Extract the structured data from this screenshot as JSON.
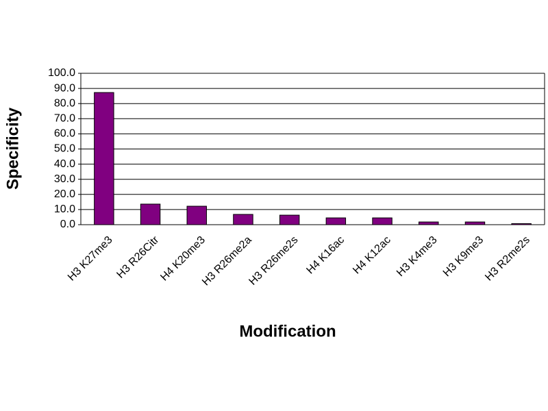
{
  "chart_data": {
    "type": "bar",
    "x_label": "Modification",
    "y_label": "Specificity",
    "categories": [
      "H3 K27me3",
      "H3 R26Citr",
      "H4 K20me3",
      "H3 R26me2a",
      "H3 R26me2s",
      "H4 K16ac",
      "H4 K12ac",
      "H3 K4me3",
      "H3 K9me3",
      "H3 R2me2s"
    ],
    "values": [
      87.3,
      13.6,
      12.2,
      6.8,
      6.3,
      4.5,
      4.5,
      1.8,
      1.8,
      0.7
    ],
    "color": "#800080",
    "ylim": [
      0,
      100
    ],
    "yticks": [
      {
        "value": 0,
        "label": "0.0"
      },
      {
        "value": 10,
        "label": "10.0"
      },
      {
        "value": 20,
        "label": "20.0"
      },
      {
        "value": 30,
        "label": "30.0"
      },
      {
        "value": 40,
        "label": "40.0"
      },
      {
        "value": 50,
        "label": "50.0"
      },
      {
        "value": 60,
        "label": "60.0"
      },
      {
        "value": 70,
        "label": "70.0"
      },
      {
        "value": 80,
        "label": "80.0"
      },
      {
        "value": 90,
        "label": "90.0"
      },
      {
        "value": 100,
        "label": "100.0"
      }
    ],
    "grid": true
  }
}
